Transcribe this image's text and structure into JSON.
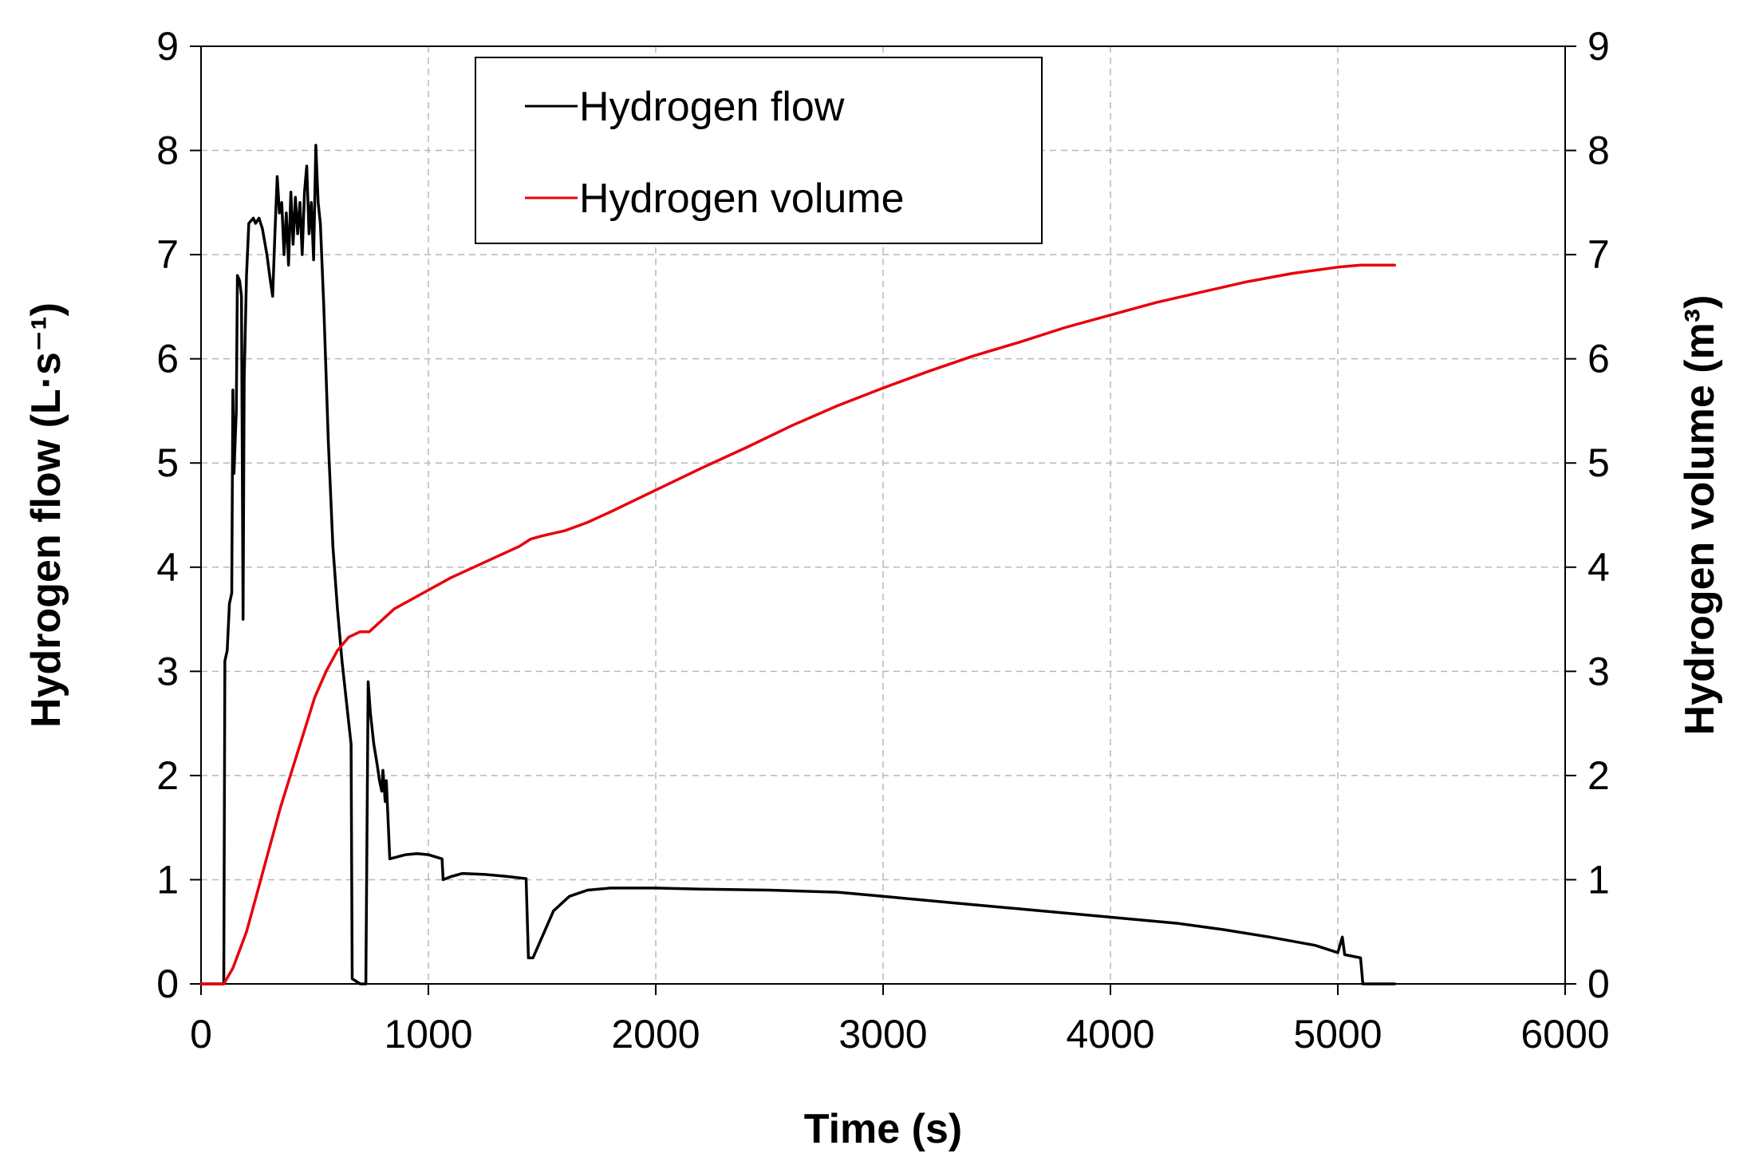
{
  "chart_data": {
    "type": "line",
    "title": "",
    "xlabel": "Time (s)",
    "ylabel_left": "Hydrogen flow  (L·s⁻¹)",
    "ylabel_right": "Hydrogen volume (m³)",
    "xlim": [
      0,
      6000
    ],
    "ylim_left": [
      0,
      9
    ],
    "ylim_right": [
      0,
      9
    ],
    "x_ticks": [
      0,
      1000,
      2000,
      3000,
      4000,
      5000,
      6000
    ],
    "y_ticks_left": [
      0,
      1,
      2,
      3,
      4,
      5,
      6,
      7,
      8,
      9
    ],
    "y_ticks_right": [
      0,
      1,
      2,
      3,
      4,
      5,
      6,
      7,
      8,
      9
    ],
    "grid": true,
    "legend_position": "top-center",
    "series": [
      {
        "name": "Hydrogen flow",
        "axis": "left",
        "color": "#000000",
        "points": [
          [
            0,
            0
          ],
          [
            100,
            0
          ],
          [
            105,
            3.1
          ],
          [
            115,
            3.2
          ],
          [
            125,
            3.65
          ],
          [
            135,
            3.75
          ],
          [
            140,
            5.7
          ],
          [
            145,
            4.9
          ],
          [
            155,
            5.5
          ],
          [
            160,
            6.8
          ],
          [
            170,
            6.75
          ],
          [
            178,
            6.6
          ],
          [
            185,
            3.5
          ],
          [
            190,
            5.8
          ],
          [
            200,
            6.8
          ],
          [
            210,
            7.3
          ],
          [
            230,
            7.35
          ],
          [
            240,
            7.3
          ],
          [
            255,
            7.35
          ],
          [
            270,
            7.25
          ],
          [
            290,
            7.0
          ],
          [
            305,
            6.75
          ],
          [
            315,
            6.6
          ],
          [
            325,
            7.2
          ],
          [
            335,
            7.75
          ],
          [
            345,
            7.4
          ],
          [
            355,
            7.5
          ],
          [
            365,
            7.0
          ],
          [
            375,
            7.4
          ],
          [
            385,
            6.9
          ],
          [
            395,
            7.6
          ],
          [
            405,
            7.1
          ],
          [
            415,
            7.55
          ],
          [
            425,
            7.2
          ],
          [
            435,
            7.5
          ],
          [
            445,
            7.0
          ],
          [
            455,
            7.6
          ],
          [
            465,
            7.85
          ],
          [
            475,
            7.2
          ],
          [
            485,
            7.5
          ],
          [
            495,
            6.95
          ],
          [
            505,
            8.05
          ],
          [
            515,
            7.5
          ],
          [
            525,
            7.3
          ],
          [
            540,
            6.5
          ],
          [
            560,
            5.2
          ],
          [
            580,
            4.2
          ],
          [
            600,
            3.6
          ],
          [
            620,
            3.1
          ],
          [
            640,
            2.7
          ],
          [
            660,
            2.3
          ],
          [
            665,
            0.05
          ],
          [
            700,
            0
          ],
          [
            725,
            0
          ],
          [
            735,
            2.9
          ],
          [
            745,
            2.6
          ],
          [
            760,
            2.3
          ],
          [
            775,
            2.1
          ],
          [
            785,
            1.95
          ],
          [
            795,
            1.85
          ],
          [
            800,
            2.05
          ],
          [
            810,
            1.75
          ],
          [
            815,
            1.95
          ],
          [
            830,
            1.2
          ],
          [
            900,
            1.24
          ],
          [
            950,
            1.25
          ],
          [
            1000,
            1.24
          ],
          [
            1060,
            1.2
          ],
          [
            1065,
            1.0
          ],
          [
            1100,
            1.03
          ],
          [
            1150,
            1.06
          ],
          [
            1250,
            1.05
          ],
          [
            1350,
            1.03
          ],
          [
            1430,
            1.01
          ],
          [
            1440,
            0.25
          ],
          [
            1460,
            0.25
          ],
          [
            1500,
            0.45
          ],
          [
            1550,
            0.7
          ],
          [
            1620,
            0.84
          ],
          [
            1700,
            0.9
          ],
          [
            1800,
            0.92
          ],
          [
            2000,
            0.92
          ],
          [
            2200,
            0.91
          ],
          [
            2500,
            0.9
          ],
          [
            2800,
            0.88
          ],
          [
            3000,
            0.84
          ],
          [
            3300,
            0.78
          ],
          [
            3600,
            0.72
          ],
          [
            4000,
            0.64
          ],
          [
            4300,
            0.58
          ],
          [
            4500,
            0.52
          ],
          [
            4700,
            0.45
          ],
          [
            4900,
            0.37
          ],
          [
            5000,
            0.3
          ],
          [
            5020,
            0.45
          ],
          [
            5030,
            0.28
          ],
          [
            5100,
            0.25
          ],
          [
            5110,
            0.0
          ],
          [
            5250,
            0.0
          ]
        ]
      },
      {
        "name": "Hydrogen volume",
        "axis": "right",
        "color": "#e8000b",
        "points": [
          [
            0,
            0
          ],
          [
            100,
            0
          ],
          [
            140,
            0.15
          ],
          [
            200,
            0.5
          ],
          [
            250,
            0.9
          ],
          [
            300,
            1.3
          ],
          [
            350,
            1.7
          ],
          [
            400,
            2.05
          ],
          [
            450,
            2.4
          ],
          [
            500,
            2.75
          ],
          [
            550,
            3.0
          ],
          [
            600,
            3.2
          ],
          [
            650,
            3.33
          ],
          [
            700,
            3.38
          ],
          [
            740,
            3.38
          ],
          [
            800,
            3.5
          ],
          [
            850,
            3.6
          ],
          [
            900,
            3.66
          ],
          [
            1000,
            3.78
          ],
          [
            1100,
            3.9
          ],
          [
            1200,
            4.0
          ],
          [
            1300,
            4.1
          ],
          [
            1400,
            4.2
          ],
          [
            1450,
            4.27
          ],
          [
            1500,
            4.3
          ],
          [
            1600,
            4.35
          ],
          [
            1700,
            4.43
          ],
          [
            1800,
            4.53
          ],
          [
            2000,
            4.74
          ],
          [
            2200,
            4.95
          ],
          [
            2400,
            5.15
          ],
          [
            2600,
            5.36
          ],
          [
            2800,
            5.55
          ],
          [
            3000,
            5.72
          ],
          [
            3200,
            5.88
          ],
          [
            3400,
            6.03
          ],
          [
            3600,
            6.16
          ],
          [
            3800,
            6.3
          ],
          [
            4000,
            6.42
          ],
          [
            4200,
            6.54
          ],
          [
            4400,
            6.64
          ],
          [
            4600,
            6.74
          ],
          [
            4800,
            6.82
          ],
          [
            5000,
            6.88
          ],
          [
            5100,
            6.9
          ],
          [
            5250,
            6.9
          ]
        ]
      }
    ]
  }
}
